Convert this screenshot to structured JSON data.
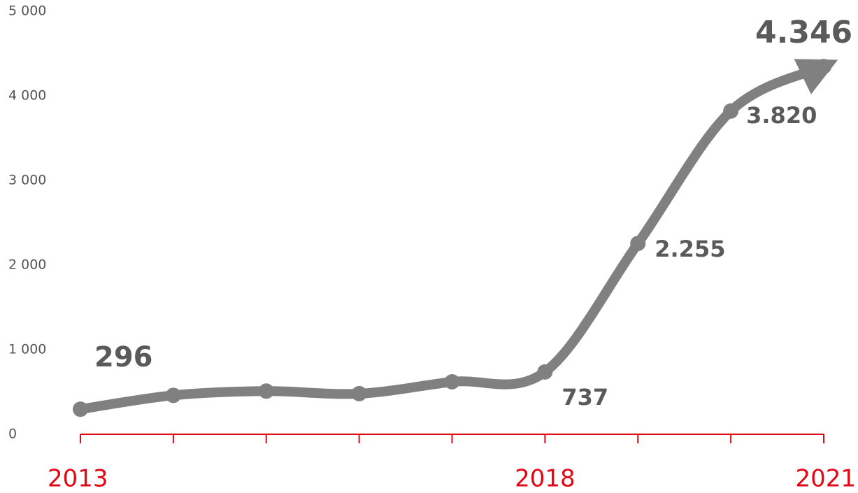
{
  "chart_data": {
    "type": "line",
    "categories": [
      "2013",
      null,
      null,
      null,
      null,
      "2018",
      null,
      null,
      "2021"
    ],
    "series": [
      {
        "color": "#808080",
        "values": [
          296,
          460,
          510,
          480,
          620,
          737,
          2255,
          3820,
          4346
        ],
        "value_labels": [
          "296",
          null,
          null,
          null,
          null,
          "737",
          "2.255",
          "3.820",
          "4.346"
        ]
      }
    ],
    "ylim": [
      0,
      5000
    ],
    "yticks": [
      0,
      {
        "value": 1000,
        "label": "1 000"
      },
      {
        "value": 2000,
        "label": "2 000"
      },
      {
        "value": 3000,
        "label": "3 000"
      },
      {
        "value": 4000,
        "label": "4 000"
      },
      {
        "value": 5000,
        "label": "5 000"
      }
    ],
    "axis_color": "#e30613"
  }
}
